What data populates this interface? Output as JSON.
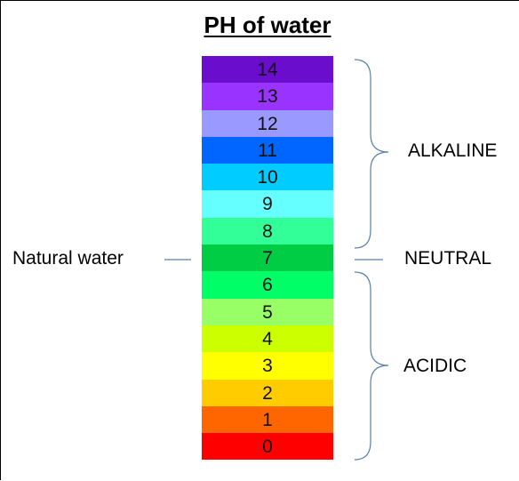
{
  "title": "PH of water",
  "scale": [
    {
      "value": "14",
      "color": "#6a0dcc"
    },
    {
      "value": "13",
      "color": "#9933ff"
    },
    {
      "value": "12",
      "color": "#9999ff"
    },
    {
      "value": "11",
      "color": "#0066ff"
    },
    {
      "value": "10",
      "color": "#00ccff"
    },
    {
      "value": "9",
      "color": "#66ffff"
    },
    {
      "value": "8",
      "color": "#33ff99"
    },
    {
      "value": "7",
      "color": "#00cc44"
    },
    {
      "value": "6",
      "color": "#00ff66"
    },
    {
      "value": "5",
      "color": "#99ff66"
    },
    {
      "value": "4",
      "color": "#ccff00"
    },
    {
      "value": "3",
      "color": "#ffff00"
    },
    {
      "value": "2",
      "color": "#ffcc00"
    },
    {
      "value": "1",
      "color": "#ff6600"
    },
    {
      "value": "0",
      "color": "#ff0000"
    }
  ],
  "labels": {
    "natural_water": "Natural water",
    "neutral": "NEUTRAL",
    "alkaline": "ALKALINE",
    "acidic": "ACIDIC"
  },
  "line_color": "#5a7fa6"
}
